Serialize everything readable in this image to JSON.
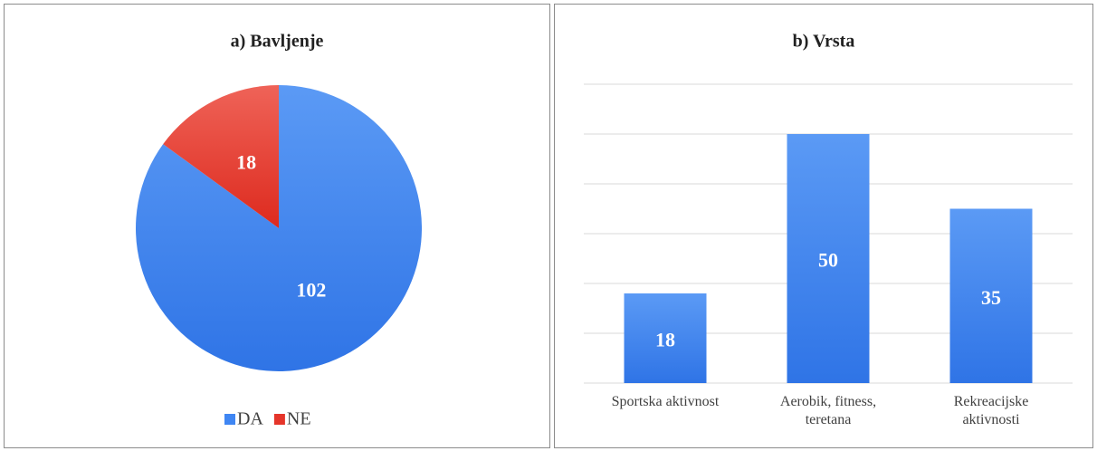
{
  "chart_data": [
    {
      "type": "pie",
      "title": "a) Bavljenje",
      "categories": [
        "DA",
        "NE"
      ],
      "values": [
        102,
        18
      ],
      "colors": [
        "#3f86f3",
        "#e5352a"
      ],
      "legend": "bottom"
    },
    {
      "type": "bar",
      "title": "b) Vrsta",
      "categories": [
        "Sportska aktivnost",
        "Aerobik, fitness, teretana",
        "Rekreacijske aktivnosti"
      ],
      "values": [
        18,
        50,
        35
      ],
      "color": "#3f86f3",
      "ylim": [
        0,
        60
      ],
      "yticks": [
        0,
        10,
        20,
        30,
        40,
        50,
        60
      ],
      "grid": true
    }
  ]
}
